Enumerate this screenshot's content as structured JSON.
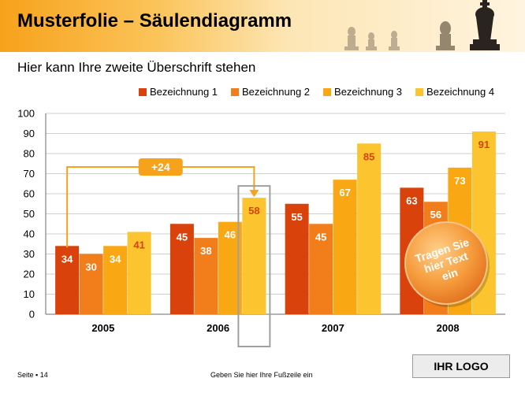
{
  "slide": {
    "title": "Musterfolie – Säulendiagramm",
    "subtitle": "Hier kann Ihre zweite Überschrift stehen",
    "footer_page": "Seite ▪ 14",
    "footer_text": "Geben Sie hier Ihre Fußzeile ein",
    "logo": "IHR LOGO",
    "callout_delta": "+24",
    "starburst_text": [
      "Tragen Sie",
      "hier Text",
      "ein"
    ]
  },
  "colors": {
    "series": [
      "#d9420a",
      "#f27e1b",
      "#f9a814",
      "#fcc42f"
    ],
    "value_label_dark": "#d9420a",
    "header_accent": "#f7a21b"
  },
  "chart_data": {
    "type": "bar",
    "categories": [
      "2005",
      "2006",
      "2007",
      "2008"
    ],
    "series": [
      {
        "name": "Bezeichnung 1",
        "values": [
          34,
          45,
          55,
          63
        ]
      },
      {
        "name": "Bezeichnung 2",
        "values": [
          30,
          38,
          45,
          56
        ]
      },
      {
        "name": "Bezeichnung 3",
        "values": [
          34,
          46,
          67,
          73
        ]
      },
      {
        "name": "Bezeichnung 4",
        "values": [
          41,
          58,
          85,
          91
        ]
      }
    ],
    "ylim": [
      0,
      100
    ],
    "yticks": [
      0,
      10,
      20,
      30,
      40,
      50,
      60,
      70,
      80,
      90,
      100
    ],
    "grid": true,
    "legend": "top-right",
    "highlight": {
      "from_series": 0,
      "from_category": 0,
      "to_series": 3,
      "to_category": 1
    }
  }
}
